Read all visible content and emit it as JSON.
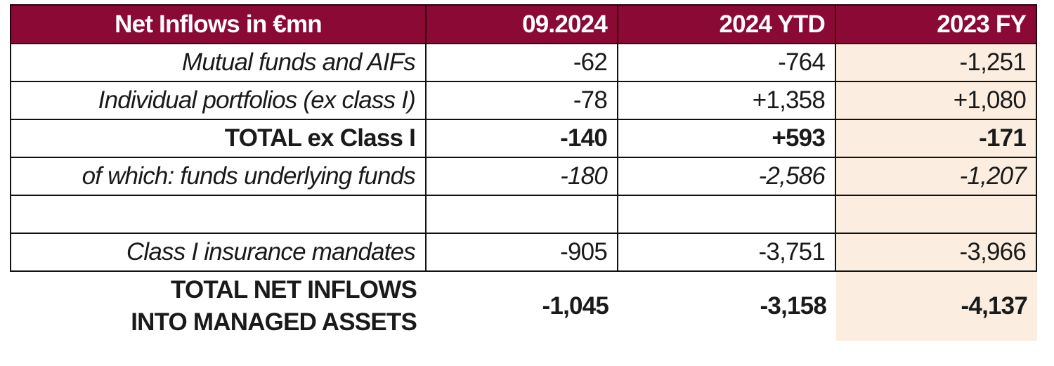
{
  "header": {
    "label": "Net Inflows in €mn",
    "col1": "09.2024",
    "col2": "2024 YTD",
    "col3": "2023 FY"
  },
  "rows": [
    {
      "label": "Mutual funds and AIFs",
      "v1": "-62",
      "v2": "-764",
      "v3": "-1,251"
    },
    {
      "label": "Individual portfolios (ex class I)",
      "v1": "-78",
      "v2": "+1,358",
      "v3": "+1,080"
    },
    {
      "label": "TOTAL ex Class I",
      "v1": "-140",
      "v2": "+593",
      "v3": "-171"
    },
    {
      "label": "of which: funds underlying funds",
      "v1": "-180",
      "v2": "-2,586",
      "v3": "-1,207"
    },
    {
      "label": "",
      "v1": "",
      "v2": "",
      "v3": ""
    },
    {
      "label": "Class I insurance mandates",
      "v1": "-905",
      "v2": "-3,751",
      "v3": "-3,966"
    }
  ],
  "total": {
    "label_line1": "TOTAL NET INFLOWS",
    "label_line2": "INTO MANAGED ASSETS",
    "v1": "-1,045",
    "v2": "-3,158",
    "v3": "-4,137"
  },
  "colors": {
    "header_bg": "#8b0a35",
    "highlight_col_bg": "#fbeee0"
  }
}
